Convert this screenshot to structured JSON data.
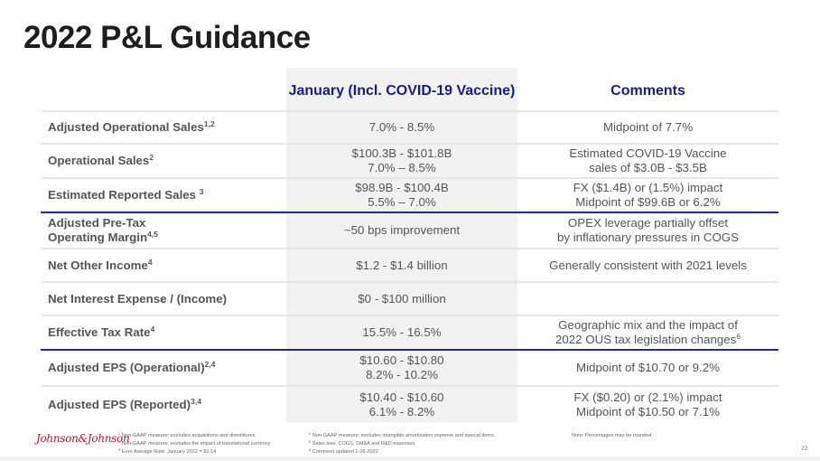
{
  "page": {
    "title": "2022 P&L Guidance",
    "page_number": "22"
  },
  "table": {
    "headers": {
      "metric": "",
      "guidance": "January (Incl. COVID-19 Vaccine)",
      "comments": "Comments"
    },
    "rows": [
      {
        "metric": "Adjusted Operational Sales",
        "metric_sup": "1,2",
        "guidance_line1": "7.0% - 8.5%",
        "guidance_line2": "",
        "comment_line1": "Midpoint of 7.7%",
        "comment_line2": ""
      },
      {
        "metric": "Operational Sales",
        "metric_sup": "2",
        "guidance_line1": "$100.3B - $101.8B",
        "guidance_line2": "7.0% – 8.5%",
        "comment_line1": "Estimated COVID-19 Vaccine",
        "comment_line2": "sales of $3.0B - $3.5B"
      },
      {
        "metric": "Estimated Reported Sales ",
        "metric_sup": "3",
        "guidance_line1": "$98.9B - $100.4B",
        "guidance_line2": "5.5% – 7.0%",
        "comment_line1": "FX ($1.4B) or (1.5%) impact",
        "comment_line2": "Midpoint of $99.6B or 6.2%"
      },
      {
        "metric_line1": "Adjusted Pre-Tax",
        "metric": "Operating Margin",
        "metric_sup": "4,5",
        "guidance_line1": "~50 bps improvement",
        "guidance_line2": "",
        "comment_line1": "OPEX leverage partially offset",
        "comment_line2": "by inflationary pressures in COGS"
      },
      {
        "metric": "Net Other Income",
        "metric_sup": "4",
        "guidance_line1": "$1.2 - $1.4 billion",
        "guidance_line2": "",
        "comment_line1": "Generally consistent with 2021 levels",
        "comment_line2": ""
      },
      {
        "metric": "Net Interest Expense / (Income)",
        "metric_sup": "",
        "guidance_line1": "$0 - $100 million",
        "guidance_line2": "",
        "comment_line1": "",
        "comment_line2": ""
      },
      {
        "metric": "Effective Tax Rate",
        "metric_sup": "4",
        "guidance_line1": "15.5% - 16.5%",
        "guidance_line2": "",
        "comment_line1": "Geographic mix and the impact of",
        "comment_line2": "2022 OUS tax legislation changes",
        "comment_sup": "6"
      },
      {
        "metric": "Adjusted EPS (Operational)",
        "metric_sup": "2,4",
        "guidance_line1": "$10.60 - $10.80",
        "guidance_line2": "8.2% - 10.2%",
        "comment_line1": "Midpoint of $10.70 or 9.2%",
        "comment_line2": ""
      },
      {
        "metric": "Adjusted EPS (Reported)",
        "metric_sup": "3,4",
        "guidance_line1": "$10.40 - $10.60",
        "guidance_line2": "6.1% - 8.2%",
        "comment_line1": "FX ($0.20) or (2.1%) impact",
        "comment_line2": "Midpoint of $10.50 or 7.1%"
      }
    ]
  },
  "footer": {
    "logo_text": "Johnson&Johnson",
    "footnotes": [
      {
        "num": "1",
        "text": "Non-GAAP measure; excludes acquisitions and divestitures"
      },
      {
        "num": "2",
        "text": "Non-GAAP measure; excludes the impact of translational currency"
      },
      {
        "num": "3",
        "text": "Euro Average Rate: January 2022 = $1.14"
      },
      {
        "num": "4",
        "text": "Non-GAAP measure; excludes intangible amortization expense and special items"
      },
      {
        "num": "5",
        "text": "Sales less: COGS, SM&A and R&D expenses"
      },
      {
        "num": "6",
        "text": "Comment updated 1-26-2022"
      }
    ],
    "note": "Note: Percentages may be rounded"
  },
  "colors": {
    "header_text": "#1a1a8c",
    "section_divider": "#1f2a8a",
    "row_divider": "#e6e6e6",
    "middle_column_shade": "#f2f2f2",
    "logo_red": "#c8102e"
  }
}
